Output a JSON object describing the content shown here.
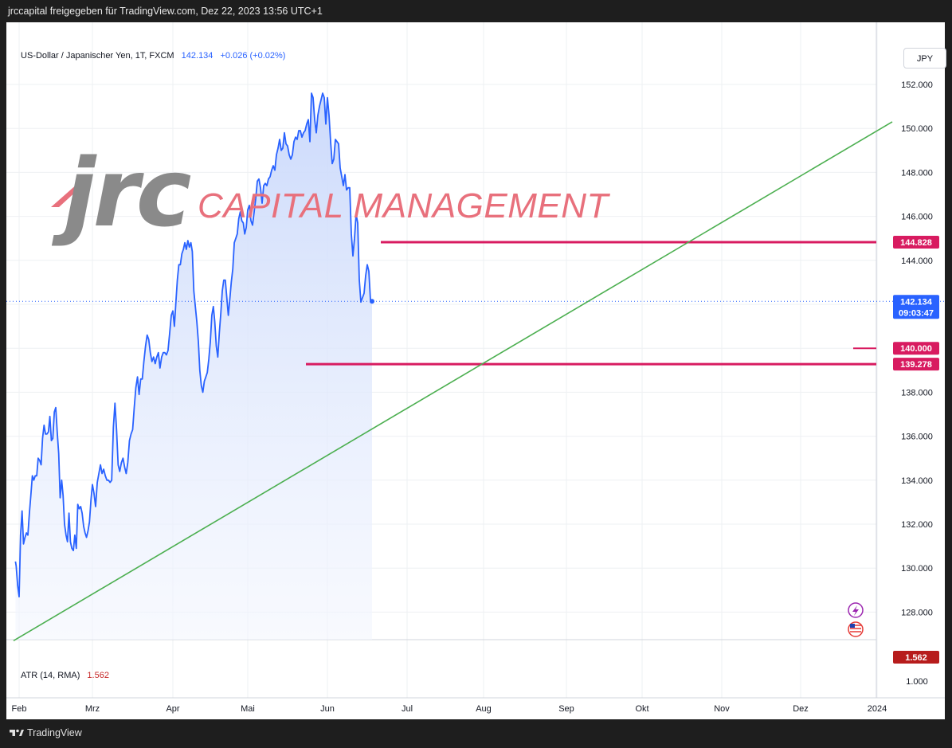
{
  "header": {
    "text": "jrccapital freigegeben für TradingView.com, Dez 22, 2023 13:56 UTC+1"
  },
  "footer": {
    "brand": "TradingView"
  },
  "legend": {
    "title": "US-Dollar / Japanischer Yen, 1T, FXCM",
    "price": "142.134",
    "change": "+0.026 (+0.02%)"
  },
  "currency_button": "JPY",
  "watermark": {
    "logo_text": "jrc",
    "tagline": "CAPITAL MANAGEMENT"
  },
  "atr": {
    "label": "ATR (14, RMA)",
    "value": "1.562",
    "axis_label": "1.000"
  },
  "price_tags": {
    "last": "142.134",
    "countdown": "09:03:47",
    "resistance": "144.828",
    "level_140": "140.000",
    "support": "139.278",
    "atr_tag": "1.562"
  },
  "colors": {
    "line": "#2962ff",
    "area_top": "#c7d6fb",
    "trendline": "#4caf50",
    "level": "#d81b60",
    "atr_tag": "#b71c1c",
    "last_tag": "#2962ff"
  },
  "chart_data": {
    "type": "area",
    "title": "US-Dollar / Japanischer Yen, 1T, FXCM",
    "x_labels": [
      "Feb",
      "Mrz",
      "Apr",
      "Mai",
      "Jun",
      "Jul",
      "Aug",
      "Sep",
      "Okt",
      "Nov",
      "Dez",
      "2024"
    ],
    "y_ticks": [
      128,
      130,
      132,
      134,
      136,
      138,
      140,
      142,
      144,
      146,
      148,
      150,
      152
    ],
    "ylim": [
      126.5,
      153.5
    ],
    "series": [
      {
        "values": [
          [
            -0.05,
            130.3
          ],
          [
            -0.04,
            130.1
          ],
          [
            -0.02,
            129.2
          ],
          [
            0.0,
            128.7
          ],
          [
            0.02,
            131.5
          ],
          [
            0.04,
            132.6
          ],
          [
            0.06,
            131.1
          ],
          [
            0.08,
            131.4
          ],
          [
            0.1,
            131.6
          ],
          [
            0.12,
            131.5
          ],
          [
            0.14,
            132.5
          ],
          [
            0.16,
            133.3
          ],
          [
            0.18,
            134.2
          ],
          [
            0.2,
            134.0
          ],
          [
            0.22,
            134.2
          ],
          [
            0.24,
            134.2
          ],
          [
            0.26,
            135.0
          ],
          [
            0.28,
            134.9
          ],
          [
            0.3,
            134.7
          ],
          [
            0.32,
            135.9
          ],
          [
            0.34,
            136.5
          ],
          [
            0.36,
            136.1
          ],
          [
            0.38,
            136.1
          ],
          [
            0.4,
            136.2
          ],
          [
            0.42,
            136.9
          ],
          [
            0.44,
            135.8
          ],
          [
            0.46,
            135.9
          ],
          [
            0.48,
            137.1
          ],
          [
            0.5,
            137.3
          ],
          [
            0.52,
            136.2
          ],
          [
            0.54,
            135.2
          ],
          [
            0.56,
            133.2
          ],
          [
            0.58,
            134.0
          ],
          [
            0.6,
            133.3
          ],
          [
            0.62,
            132.0
          ],
          [
            0.64,
            131.5
          ],
          [
            0.66,
            131.2
          ],
          [
            0.68,
            132.5
          ],
          [
            0.7,
            131.2
          ],
          [
            0.72,
            130.9
          ],
          [
            0.74,
            130.8
          ],
          [
            0.76,
            131.5
          ],
          [
            0.78,
            130.9
          ],
          [
            0.8,
            132.9
          ],
          [
            0.82,
            132.7
          ],
          [
            0.84,
            132.8
          ],
          [
            0.86,
            132.5
          ],
          [
            0.88,
            131.9
          ],
          [
            0.9,
            131.6
          ],
          [
            0.92,
            131.4
          ],
          [
            0.94,
            131.7
          ],
          [
            0.96,
            132.1
          ],
          [
            0.98,
            133.1
          ],
          [
            1.0,
            133.8
          ],
          [
            1.02,
            133.4
          ],
          [
            1.04,
            132.8
          ],
          [
            1.06,
            133.9
          ],
          [
            1.08,
            134.3
          ],
          [
            1.1,
            134.7
          ],
          [
            1.12,
            134.3
          ],
          [
            1.14,
            134.5
          ],
          [
            1.16,
            134.2
          ],
          [
            1.18,
            134.0
          ],
          [
            1.2,
            134.0
          ],
          [
            1.22,
            133.9
          ],
          [
            1.24,
            134.0
          ],
          [
            1.26,
            136.4
          ],
          [
            1.28,
            137.5
          ],
          [
            1.3,
            136.3
          ],
          [
            1.32,
            134.7
          ],
          [
            1.34,
            134.4
          ],
          [
            1.36,
            134.8
          ],
          [
            1.38,
            135.0
          ],
          [
            1.4,
            134.6
          ],
          [
            1.42,
            134.3
          ],
          [
            1.44,
            134.8
          ],
          [
            1.46,
            135.8
          ],
          [
            1.48,
            136.1
          ],
          [
            1.5,
            136.3
          ],
          [
            1.52,
            137.3
          ],
          [
            1.54,
            138.2
          ],
          [
            1.56,
            138.7
          ],
          [
            1.58,
            137.9
          ],
          [
            1.6,
            138.6
          ],
          [
            1.62,
            138.6
          ],
          [
            1.64,
            139.4
          ],
          [
            1.66,
            140.1
          ],
          [
            1.68,
            140.6
          ],
          [
            1.7,
            140.4
          ],
          [
            1.72,
            139.8
          ],
          [
            1.74,
            139.4
          ],
          [
            1.76,
            139.6
          ],
          [
            1.78,
            139.3
          ],
          [
            1.8,
            139.6
          ],
          [
            1.82,
            139.8
          ],
          [
            1.84,
            139.1
          ],
          [
            1.86,
            139.6
          ],
          [
            1.88,
            139.8
          ],
          [
            1.9,
            139.8
          ],
          [
            1.92,
            139.7
          ],
          [
            1.94,
            139.9
          ],
          [
            1.96,
            140.7
          ],
          [
            1.98,
            141.5
          ],
          [
            2.0,
            141.7
          ],
          [
            2.02,
            141.0
          ],
          [
            2.04,
            142.1
          ],
          [
            2.06,
            143.1
          ],
          [
            2.08,
            143.8
          ],
          [
            2.1,
            143.8
          ],
          [
            2.12,
            144.3
          ],
          [
            2.14,
            144.5
          ],
          [
            2.16,
            144.8
          ],
          [
            2.18,
            144.5
          ],
          [
            2.2,
            144.9
          ],
          [
            2.22,
            144.6
          ],
          [
            2.24,
            144.8
          ],
          [
            2.26,
            144.4
          ],
          [
            2.28,
            142.6
          ],
          [
            2.3,
            141.9
          ],
          [
            2.32,
            141.2
          ],
          [
            2.34,
            140.3
          ],
          [
            2.36,
            139.0
          ],
          [
            2.38,
            138.3
          ],
          [
            2.4,
            138.0
          ],
          [
            2.42,
            138.5
          ],
          [
            2.44,
            138.7
          ],
          [
            2.46,
            138.9
          ],
          [
            2.48,
            139.5
          ],
          [
            2.5,
            140.3
          ],
          [
            2.52,
            141.5
          ],
          [
            2.54,
            141.9
          ],
          [
            2.56,
            141.2
          ],
          [
            2.58,
            140.1
          ],
          [
            2.6,
            139.6
          ],
          [
            2.62,
            140.7
          ],
          [
            2.64,
            141.6
          ],
          [
            2.66,
            142.6
          ],
          [
            2.68,
            143.1
          ],
          [
            2.7,
            143.1
          ],
          [
            2.72,
            142.3
          ],
          [
            2.74,
            141.5
          ],
          [
            2.76,
            142.2
          ],
          [
            2.78,
            143.0
          ],
          [
            2.8,
            143.6
          ],
          [
            2.82,
            144.8
          ],
          [
            2.84,
            145.0
          ],
          [
            2.86,
            145.2
          ],
          [
            2.88,
            145.9
          ],
          [
            2.9,
            146.2
          ],
          [
            2.92,
            145.8
          ],
          [
            2.94,
            145.7
          ],
          [
            2.96,
            145.2
          ],
          [
            2.98,
            145.5
          ],
          [
            3.0,
            146.3
          ],
          [
            3.02,
            146.5
          ],
          [
            3.04,
            145.8
          ],
          [
            3.06,
            145.6
          ],
          [
            3.08,
            146.2
          ],
          [
            3.1,
            146.8
          ],
          [
            3.12,
            147.6
          ],
          [
            3.14,
            147.7
          ],
          [
            3.16,
            147.3
          ],
          [
            3.18,
            146.6
          ],
          [
            3.2,
            147.4
          ],
          [
            3.22,
            147.5
          ],
          [
            3.24,
            147.4
          ],
          [
            3.26,
            147.7
          ],
          [
            3.28,
            147.8
          ],
          [
            3.3,
            148.1
          ],
          [
            3.32,
            148.3
          ],
          [
            3.34,
            148.1
          ],
          [
            3.36,
            148.8
          ],
          [
            3.38,
            149.1
          ],
          [
            3.4,
            149.5
          ],
          [
            3.42,
            149.0
          ],
          [
            3.44,
            149.1
          ],
          [
            3.46,
            149.8
          ],
          [
            3.48,
            149.3
          ],
          [
            3.5,
            149.2
          ],
          [
            3.52,
            148.8
          ],
          [
            3.54,
            148.6
          ],
          [
            3.56,
            148.8
          ],
          [
            3.58,
            149.4
          ],
          [
            3.6,
            149.6
          ],
          [
            3.62,
            149.5
          ],
          [
            3.64,
            149.9
          ],
          [
            3.66,
            149.9
          ],
          [
            3.68,
            149.6
          ],
          [
            3.7,
            149.8
          ],
          [
            3.72,
            149.9
          ],
          [
            3.74,
            150.2
          ],
          [
            3.76,
            150.4
          ],
          [
            3.78,
            149.4
          ],
          [
            3.8,
            151.6
          ],
          [
            3.82,
            151.4
          ],
          [
            3.84,
            150.4
          ],
          [
            3.86,
            149.8
          ],
          [
            3.88,
            150.6
          ],
          [
            3.9,
            151.0
          ],
          [
            3.92,
            151.3
          ],
          [
            3.94,
            151.6
          ],
          [
            3.96,
            151.4
          ],
          [
            3.98,
            150.2
          ],
          [
            4.0,
            151.4
          ],
          [
            4.02,
            150.6
          ],
          [
            4.04,
            149.4
          ],
          [
            4.06,
            148.4
          ],
          [
            4.08,
            148.6
          ],
          [
            4.1,
            149.5
          ],
          [
            4.12,
            149.4
          ],
          [
            4.14,
            149.3
          ],
          [
            4.16,
            148.2
          ],
          [
            4.18,
            147.8
          ],
          [
            4.2,
            147.4
          ],
          [
            4.22,
            147.9
          ],
          [
            4.24,
            147.2
          ],
          [
            4.26,
            147.3
          ],
          [
            4.28,
            147.3
          ],
          [
            4.3,
            145.2
          ],
          [
            4.32,
            144.2
          ],
          [
            4.34,
            145.0
          ],
          [
            4.36,
            146.1
          ],
          [
            4.38,
            145.7
          ],
          [
            4.4,
            143.1
          ],
          [
            4.42,
            142.1
          ],
          [
            4.44,
            142.3
          ],
          [
            4.46,
            142.5
          ],
          [
            4.48,
            143.3
          ],
          [
            4.5,
            143.8
          ],
          [
            4.52,
            143.5
          ],
          [
            4.54,
            142.2
          ],
          [
            4.56,
            142.134
          ]
        ]
      }
    ],
    "levels": [
      144.828,
      140.0,
      139.278
    ],
    "trendline": [
      [
        -0.05,
        126.7
      ],
      [
        5.0,
        150.3
      ]
    ]
  }
}
